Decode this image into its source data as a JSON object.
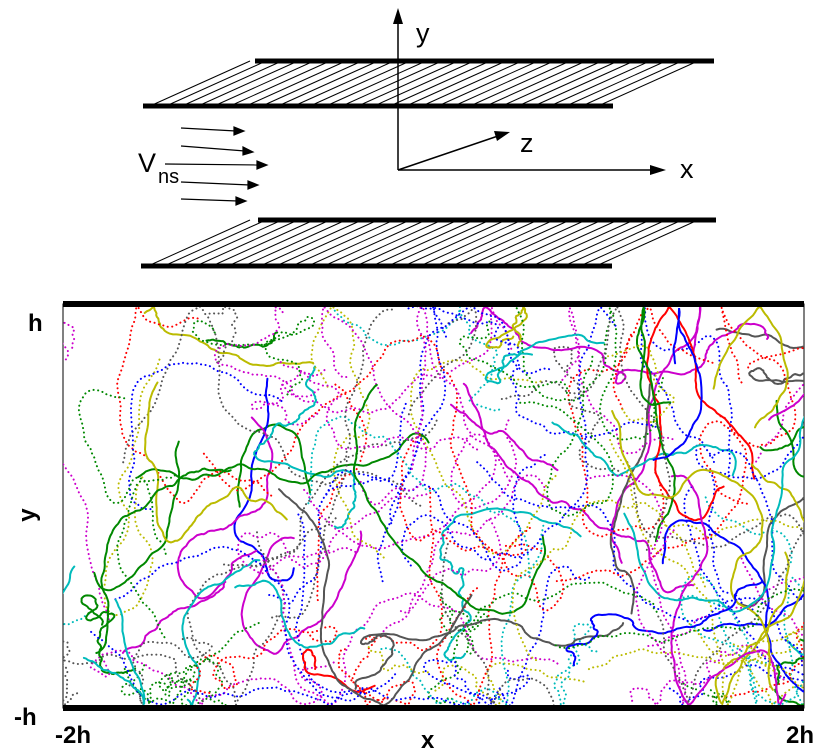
{
  "schematic": {
    "axis_y": "y",
    "axis_z": "z",
    "axis_x": "x",
    "flow_label": "V",
    "flow_subscript": "ns"
  },
  "plot": {
    "ylabel": "y",
    "xlabel": "x",
    "y_top_label": "h",
    "y_bottom_label": "-h",
    "x_left_label": "-2h",
    "x_right_label": "2h",
    "colors": [
      "#ff0000",
      "#0000ff",
      "#cc00cc",
      "#00bbbb",
      "#008800",
      "#555555",
      "#bbbb00"
    ]
  }
}
